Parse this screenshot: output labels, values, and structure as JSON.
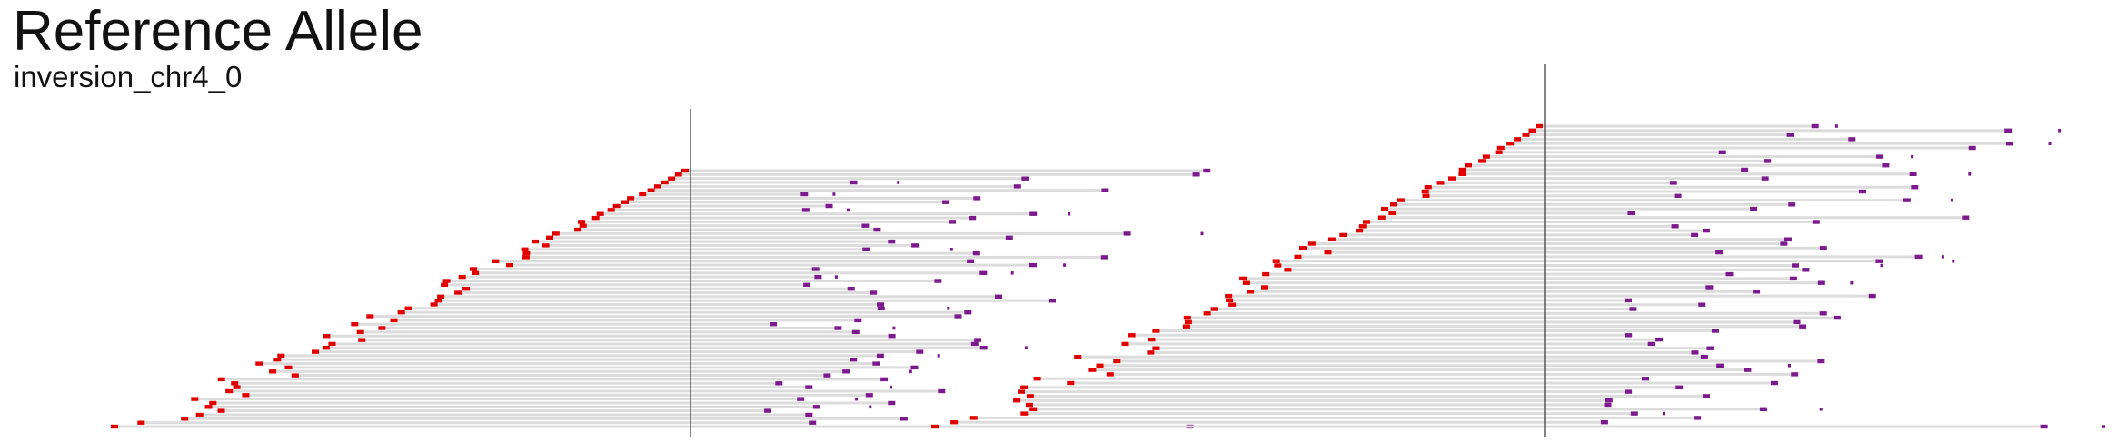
{
  "header": {
    "title": "Reference Allele",
    "subtitle": "inversion_chr4_0"
  },
  "colors": {
    "read_segment": "#e10000",
    "mate_segment": "#7b1a8c",
    "connector": "#dcdcdc",
    "breakpoint_line": "#333333"
  },
  "panels": [
    {
      "name": "left-panel",
      "read_count": 66
    },
    {
      "name": "right-panel",
      "read_count": 70
    }
  ]
}
